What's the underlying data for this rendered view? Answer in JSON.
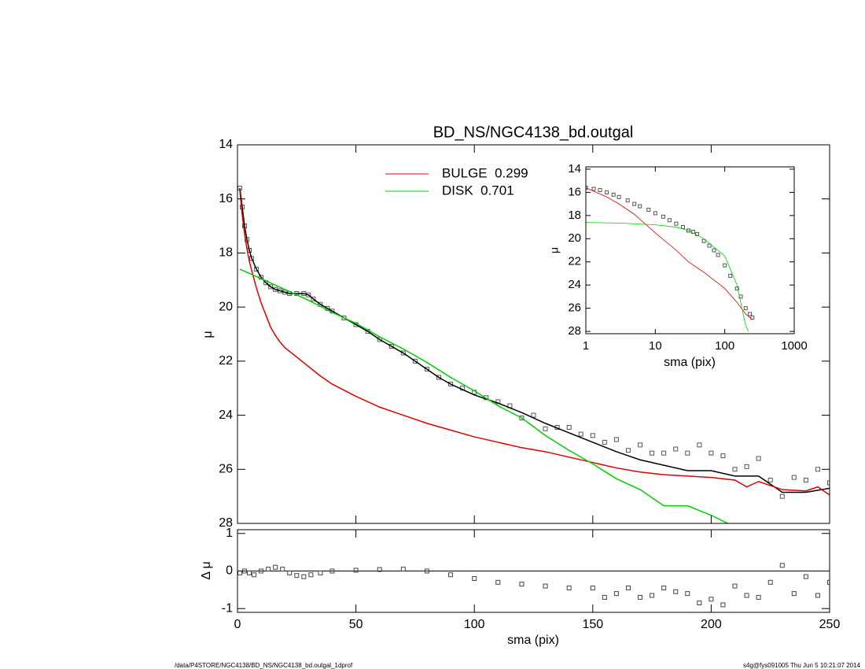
{
  "footer_left": "/data/P4STORE/NGC4138/BD_NS/NGC4138_bd.outgal_1dprof",
  "footer_right": "s4g@fys091005  Thu Jun  5 10:21:07 2014",
  "chart_data": [
    {
      "type": "line",
      "title": "BD_NS/NGC4138_bd.outgal",
      "ylabel": "μ",
      "xlim": [
        0,
        250
      ],
      "xticks": [
        0,
        50,
        100,
        150,
        200,
        250
      ],
      "ylim": [
        28,
        14
      ],
      "yticks": [
        14,
        16,
        18,
        20,
        22,
        24,
        26,
        28
      ],
      "series": [
        {
          "color": "#555555",
          "marker": "square",
          "x": [
            1,
            2,
            3,
            4,
            5,
            6,
            8,
            10,
            12,
            14,
            16,
            18,
            20,
            22,
            25,
            28,
            30,
            32,
            35,
            38,
            40,
            45,
            50,
            55,
            60,
            65,
            70,
            75,
            80,
            85,
            90,
            95,
            100,
            105,
            110,
            115,
            120,
            125,
            130,
            135,
            140,
            145,
            150,
            155,
            160,
            165,
            170,
            175,
            180,
            185,
            190,
            195,
            200,
            205,
            210,
            215,
            220,
            225,
            230,
            235,
            240,
            245,
            250
          ],
          "values": [
            15.6,
            16.3,
            17.0,
            17.5,
            17.9,
            18.2,
            18.6,
            18.9,
            19.1,
            19.25,
            19.35,
            19.4,
            19.45,
            19.5,
            19.5,
            19.5,
            19.55,
            19.7,
            19.9,
            20.05,
            20.15,
            20.4,
            20.65,
            20.9,
            21.2,
            21.45,
            21.7,
            22.0,
            22.3,
            22.6,
            22.85,
            23.0,
            23.15,
            23.35,
            23.5,
            23.65,
            24.1,
            24.0,
            24.5,
            24.45,
            24.45,
            24.7,
            24.75,
            25.0,
            24.9,
            25.3,
            25.1,
            25.4,
            25.4,
            25.25,
            25.4,
            25.1,
            25.4,
            25.5,
            26.0,
            25.9,
            25.6,
            26.4,
            27.0,
            26.3,
            26.4,
            26.0,
            26.5
          ]
        },
        {
          "color": "#000000",
          "x": [
            1,
            2,
            3,
            4,
            5,
            6,
            8,
            10,
            12,
            14,
            16,
            18,
            20,
            22,
            25,
            28,
            30,
            32,
            35,
            38,
            40,
            45,
            50,
            55,
            60,
            65,
            70,
            75,
            80,
            85,
            90,
            100,
            110,
            120,
            130,
            140,
            150,
            160,
            170,
            180,
            190,
            200,
            210,
            220,
            225,
            230,
            240,
            250
          ],
          "values": [
            15.6,
            16.3,
            17.0,
            17.5,
            17.9,
            18.2,
            18.6,
            18.9,
            19.1,
            19.25,
            19.35,
            19.4,
            19.45,
            19.5,
            19.5,
            19.5,
            19.55,
            19.7,
            19.9,
            20.05,
            20.15,
            20.4,
            20.65,
            20.9,
            21.2,
            21.45,
            21.7,
            22.0,
            22.3,
            22.6,
            22.85,
            23.25,
            23.55,
            23.9,
            24.3,
            24.65,
            25.0,
            25.35,
            25.65,
            25.85,
            26.05,
            26.05,
            26.25,
            26.25,
            26.55,
            26.85,
            26.85,
            26.7
          ]
        },
        {
          "name": "BULGE  0.299",
          "color": "#e00000",
          "x": [
            1,
            2,
            3,
            4,
            5,
            6,
            8,
            10,
            12,
            14,
            16,
            18,
            20,
            25,
            30,
            35,
            40,
            50,
            60,
            70,
            80,
            90,
            100,
            110,
            120,
            130,
            140,
            150,
            160,
            170,
            180,
            190,
            200,
            210,
            215,
            220,
            230,
            240,
            245,
            250
          ],
          "values": [
            15.7,
            16.6,
            17.3,
            17.85,
            18.3,
            18.65,
            19.3,
            19.85,
            20.3,
            20.75,
            21.05,
            21.3,
            21.5,
            21.85,
            22.2,
            22.55,
            22.85,
            23.3,
            23.7,
            24.0,
            24.3,
            24.55,
            24.8,
            25.0,
            25.2,
            25.35,
            25.55,
            25.75,
            25.95,
            26.1,
            26.2,
            26.25,
            26.3,
            26.4,
            26.65,
            26.45,
            26.75,
            26.8,
            26.65,
            26.95
          ]
        },
        {
          "name": "DISK  0.701",
          "color": "#00d000",
          "x": [
            1,
            10,
            20,
            30,
            40,
            50,
            60,
            70,
            80,
            90,
            100,
            110,
            120,
            130,
            140,
            150,
            160,
            170,
            180,
            190,
            200,
            207
          ],
          "values": [
            18.6,
            18.95,
            19.35,
            19.75,
            20.2,
            20.6,
            21.1,
            21.55,
            22.05,
            22.6,
            23.1,
            23.65,
            24.1,
            24.75,
            25.3,
            25.8,
            26.35,
            26.75,
            27.35,
            27.35,
            27.7,
            28.0
          ]
        }
      ]
    },
    {
      "type": "line",
      "xlabel": "sma (pix)",
      "ylabel": "μ",
      "xlog": true,
      "xlim": [
        1,
        1000
      ],
      "xticks": [
        1,
        10,
        100,
        1000
      ],
      "ylim": [
        28.2,
        13.8
      ],
      "yticks": [
        14,
        16,
        18,
        20,
        22,
        24,
        26,
        28
      ],
      "series": [
        {
          "color": "#555555",
          "marker": "square",
          "x": [
            1,
            1.3,
            1.6,
            2,
            2.5,
            3,
            4,
            5,
            6,
            8,
            10,
            13,
            16,
            20,
            25,
            30,
            35,
            40,
            50,
            60,
            70,
            80,
            100,
            120,
            150,
            170,
            200,
            230,
            250
          ],
          "values": [
            15.6,
            15.7,
            15.8,
            16.0,
            16.2,
            16.4,
            16.7,
            17.0,
            17.2,
            17.5,
            17.8,
            18.1,
            18.4,
            18.7,
            19.0,
            19.3,
            19.4,
            19.6,
            20.2,
            20.6,
            21.0,
            21.4,
            22.3,
            23.2,
            24.3,
            25.0,
            26.0,
            26.5,
            26.8
          ]
        },
        {
          "color": "#e00000",
          "x": [
            1,
            2,
            3,
            5,
            10,
            20,
            30,
            50,
            100,
            150,
            200,
            250
          ],
          "values": [
            15.6,
            16.4,
            17.0,
            17.9,
            19.5,
            21.0,
            22.0,
            22.9,
            24.3,
            25.5,
            26.5,
            27.0
          ]
        },
        {
          "color": "#00d000",
          "x": [
            1,
            3,
            10,
            20,
            30,
            50,
            100,
            150,
            200,
            220
          ],
          "values": [
            18.6,
            18.65,
            18.8,
            19.0,
            19.3,
            20.0,
            21.5,
            24.0,
            27.5,
            28.0
          ]
        }
      ]
    },
    {
      "type": "scatter",
      "xlabel": "sma (pix)",
      "ylabel": "Δ μ",
      "xlim": [
        0,
        250
      ],
      "xticks": [
        0,
        50,
        100,
        150,
        200,
        250
      ],
      "ylim": [
        -1.1,
        1.1
      ],
      "yticks": [
        -1,
        0,
        1
      ],
      "reference_line": 0,
      "color": "#444444",
      "x": [
        1,
        3,
        5,
        7,
        10,
        13,
        16,
        19,
        22,
        25,
        28,
        31,
        35,
        40,
        50,
        60,
        70,
        80,
        90,
        100,
        110,
        120,
        130,
        140,
        150,
        155,
        160,
        165,
        170,
        175,
        180,
        185,
        190,
        195,
        200,
        205,
        210,
        215,
        220,
        225,
        230,
        235,
        240,
        245,
        250
      ],
      "values": [
        -0.05,
        0.0,
        -0.05,
        -0.1,
        0.0,
        0.05,
        0.1,
        0.05,
        -0.05,
        -0.12,
        -0.15,
        -0.1,
        -0.05,
        0.0,
        0.02,
        0.04,
        0.05,
        0.0,
        -0.1,
        -0.2,
        -0.3,
        -0.35,
        -0.4,
        -0.45,
        -0.45,
        -0.7,
        -0.6,
        -0.45,
        -0.7,
        -0.65,
        -0.45,
        -0.55,
        -0.6,
        -0.85,
        -0.75,
        -0.9,
        -0.4,
        -0.65,
        -0.7,
        -0.3,
        0.15,
        -0.6,
        -0.15,
        -0.65,
        -0.3
      ]
    }
  ]
}
